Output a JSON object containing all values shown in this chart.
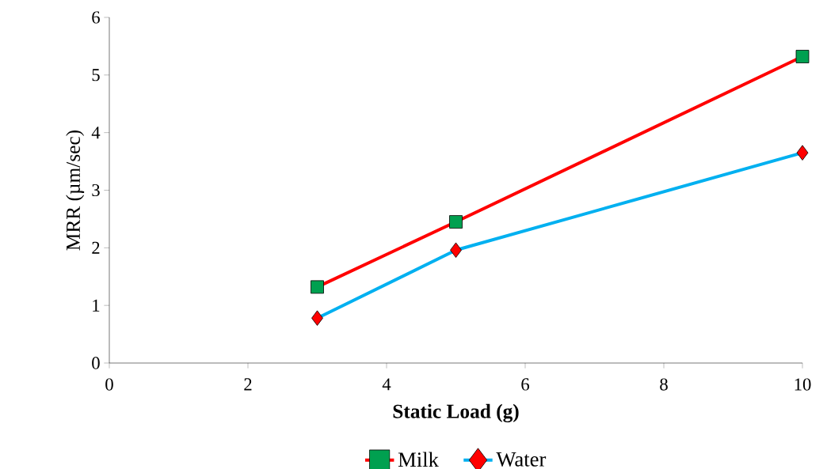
{
  "chart_data": {
    "type": "line",
    "xlabel": "Static Load (g)",
    "ylabel": "MRR (µm/sec)",
    "x": [
      3,
      5,
      10
    ],
    "series": [
      {
        "name": "Milk",
        "color": "#ff0000",
        "marker": "square",
        "values": [
          1.32,
          2.45,
          5.32
        ]
      },
      {
        "name": "Water",
        "color": "#00b0f0",
        "marker": "diamond",
        "values": [
          0.78,
          1.96,
          3.65
        ]
      }
    ],
    "xlim": [
      0,
      10
    ],
    "ylim": [
      0,
      6
    ],
    "xticks": [
      0,
      2,
      4,
      6,
      8,
      10
    ],
    "yticks": [
      0,
      1,
      2,
      3,
      4,
      5,
      6
    ],
    "legend": "bottom",
    "grid": false
  }
}
